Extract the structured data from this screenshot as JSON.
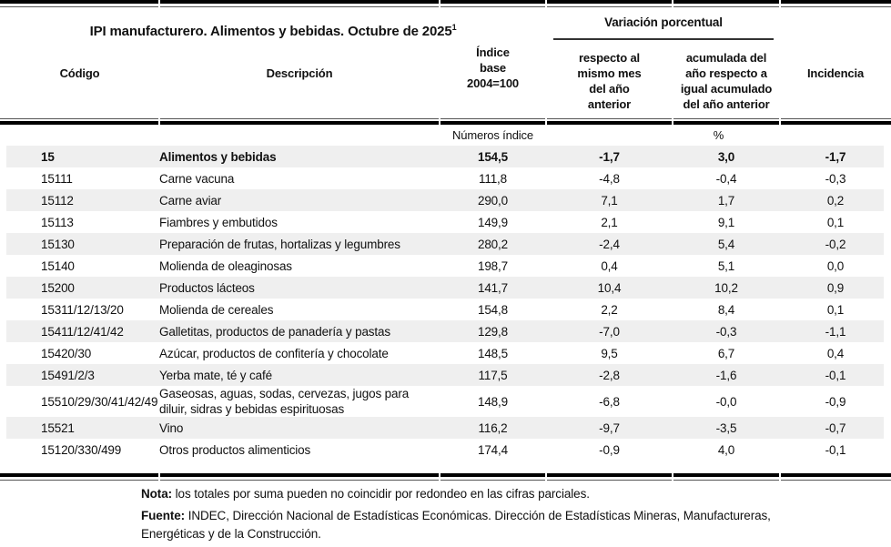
{
  "table": {
    "title": "IPI manufacturero. Alimentos y bebidas. Octubre de 2025",
    "title_footnote_marker": "1",
    "group_header": "Variación porcentual",
    "columns": {
      "codigo": "Código",
      "descripcion": "Descripción",
      "indice": "Índice\nbase\n2004=100",
      "var_mes": "respecto al\nmismo mes\ndel año\nanterior",
      "var_acum": "acumulada del\naño respecto a\nigual acumulado\ndel año anterior",
      "incidencia": "Incidencia"
    },
    "units": {
      "indice": "Números índice",
      "porcentaje": "%"
    },
    "rows": [
      {
        "code": "15",
        "desc": "Alimentos y bebidas",
        "index": "154,5",
        "var_month": "-1,7",
        "var_accum": "3,0",
        "incidence": "-1,7",
        "bold": true
      },
      {
        "code": "15111",
        "desc": "Carne vacuna",
        "index": "111,8",
        "var_month": "-4,8",
        "var_accum": "-0,4",
        "incidence": "-0,3"
      },
      {
        "code": "15112",
        "desc": "Carne aviar",
        "index": "290,0",
        "var_month": "7,1",
        "var_accum": "1,7",
        "incidence": "0,2"
      },
      {
        "code": "15113",
        "desc": "Fiambres y embutidos",
        "index": "149,9",
        "var_month": "2,1",
        "var_accum": "9,1",
        "incidence": "0,1"
      },
      {
        "code": "15130",
        "desc": "Preparación de frutas, hortalizas y legumbres",
        "index": "280,2",
        "var_month": "-2,4",
        "var_accum": "5,4",
        "incidence": "-0,2"
      },
      {
        "code": "15140",
        "desc": "Molienda de oleaginosas",
        "index": "198,7",
        "var_month": "0,4",
        "var_accum": "5,1",
        "incidence": "0,0"
      },
      {
        "code": "15200",
        "desc": "Productos lácteos",
        "index": "141,7",
        "var_month": "10,4",
        "var_accum": "10,2",
        "incidence": "0,9"
      },
      {
        "code": "15311/12/13/20",
        "desc": "Molienda de cereales",
        "index": "154,8",
        "var_month": "2,2",
        "var_accum": "8,4",
        "incidence": "0,1"
      },
      {
        "code": "15411/12/41/42",
        "desc": "Galletitas, productos de panadería y pastas",
        "index": "129,8",
        "var_month": "-7,0",
        "var_accum": "-0,3",
        "incidence": "-1,1"
      },
      {
        "code": "15420/30",
        "desc": "Azúcar, productos de confitería y chocolate",
        "index": "148,5",
        "var_month": "9,5",
        "var_accum": "6,7",
        "incidence": "0,4"
      },
      {
        "code": "15491/2/3",
        "desc": "Yerba mate, té y café",
        "index": "117,5",
        "var_month": "-2,8",
        "var_accum": "-1,6",
        "incidence": "-0,1"
      },
      {
        "code": "15510/29/30/41/42/49",
        "desc": "Gaseosas, aguas, sodas, cervezas, jugos para diluir, sidras y bebidas espirituosas",
        "index": "148,9",
        "var_month": "-6,8",
        "var_accum": "-0,0",
        "incidence": "-0,9"
      },
      {
        "code": "15521",
        "desc": "Vino",
        "index": "116,2",
        "var_month": "-9,7",
        "var_accum": "-3,5",
        "incidence": "-0,7"
      },
      {
        "code": "15120/330/499",
        "desc": "Otros productos alimenticios",
        "index": "174,4",
        "var_month": "-0,9",
        "var_accum": "4,0",
        "incidence": "-0,1"
      }
    ]
  },
  "notes": {
    "nota_label": "Nota:",
    "nota_text": " los totales por suma pueden no coincidir por redondeo en las cifras parciales.",
    "fuente_label": "Fuente:",
    "fuente_text": " INDEC, Dirección Nacional de Estadísticas Económicas. Dirección de Estadísticas Mineras, Manufactureras, Energéticas y de la Construcción."
  },
  "colors": {
    "row_shade": "#efefef",
    "rule": "#000000",
    "rule_thin": "#555555",
    "text": "#111111"
  }
}
